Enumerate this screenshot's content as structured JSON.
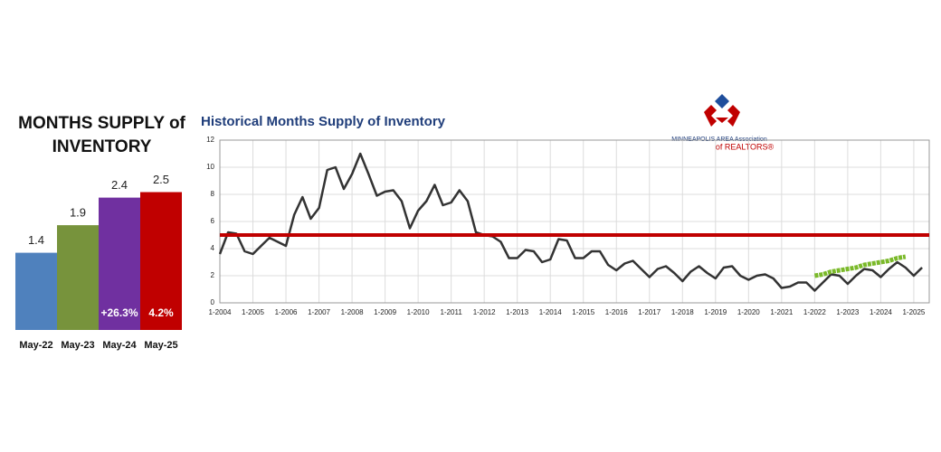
{
  "chart_data": [
    {
      "type": "bar",
      "title": "MONTHS SUPPLY of INVENTORY",
      "categories": [
        "May-22",
        "May-23",
        "May-24",
        "May-25"
      ],
      "values": [
        1.4,
        1.9,
        2.4,
        2.5
      ],
      "colors": [
        "#4f81bd",
        "#77933c",
        "#7030a0",
        "#c00000"
      ],
      "bar_notes": [
        null,
        null,
        "+26.3%",
        "4.2%"
      ]
    },
    {
      "type": "line",
      "title": "Historical Months Supply of Inventory",
      "logo": {
        "line1": "MINNEAPOLIS AREA Association",
        "line2": "of REALTORS®"
      },
      "categories": [
        "1-2004",
        null,
        null,
        null,
        "1-2005",
        null,
        null,
        null,
        "1-2006",
        null,
        null,
        null,
        "1-2007",
        null,
        null,
        null,
        "1-2008",
        null,
        null,
        null,
        "1-2009",
        null,
        null,
        null,
        "1-2010",
        null,
        null,
        null,
        "1-2011",
        null,
        null,
        null,
        "1-2012",
        null,
        null,
        null,
        "1-2013",
        null,
        null,
        null,
        "1-2014",
        null,
        null,
        null,
        "1-2015",
        null,
        null,
        null,
        "1-2016",
        null,
        null,
        null,
        "1-2017",
        null,
        null,
        null,
        "1-2018",
        null,
        null,
        null,
        "1-2019",
        null,
        null,
        null,
        "1-2020",
        null,
        null,
        null,
        "1-2021",
        null,
        null,
        null,
        "1-2022",
        null,
        null,
        null,
        "1-2023",
        null,
        null,
        null,
        "1-2024",
        null,
        null,
        null,
        "1-2025",
        null
      ],
      "series": [
        {
          "color": "#333333",
          "values": [
            3.6,
            5.2,
            5.1,
            3.8,
            3.6,
            4.2,
            4.8,
            4.5,
            4.2,
            6.5,
            7.8,
            6.2,
            7.0,
            9.8,
            10.0,
            8.4,
            9.5,
            11.0,
            9.5,
            7.9,
            8.2,
            8.3,
            7.5,
            5.5,
            6.8,
            7.5,
            8.7,
            7.2,
            7.4,
            8.3,
            7.5,
            5.2,
            5.0,
            4.9,
            4.5,
            3.3,
            3.3,
            3.9,
            3.8,
            3.0,
            3.2,
            4.7,
            4.6,
            3.3,
            3.3,
            3.8,
            3.8,
            2.8,
            2.4,
            2.9,
            3.1,
            2.5,
            1.9,
            2.5,
            2.7,
            2.2,
            1.6,
            2.3,
            2.7,
            2.2,
            1.8,
            2.6,
            2.7,
            2.0,
            1.7,
            2.0,
            2.1,
            1.8,
            1.1,
            1.2,
            1.5,
            1.5,
            0.9,
            1.5,
            2.1,
            2.0,
            1.4,
            2.0,
            2.5,
            2.4,
            1.9,
            2.5,
            3.0,
            2.6,
            2.0,
            2.6
          ]
        },
        {
          "color": "#7ab929",
          "values": [
            null,
            null,
            null,
            null,
            null,
            null,
            null,
            null,
            null,
            null,
            null,
            null,
            null,
            null,
            null,
            null,
            null,
            null,
            null,
            null,
            null,
            null,
            null,
            null,
            null,
            null,
            null,
            null,
            null,
            null,
            null,
            null,
            null,
            null,
            null,
            null,
            null,
            null,
            null,
            null,
            null,
            null,
            null,
            null,
            null,
            null,
            null,
            null,
            null,
            null,
            null,
            null,
            null,
            null,
            null,
            null,
            null,
            null,
            null,
            null,
            null,
            null,
            null,
            null,
            null,
            null,
            null,
            null,
            null,
            null,
            null,
            null,
            2.0,
            2.1,
            2.3,
            2.4,
            2.5,
            2.6,
            2.8,
            2.9,
            3.0,
            3.1,
            3.3,
            3.4,
            null,
            null
          ]
        }
      ],
      "reference_line": {
        "value": 5,
        "color": "#c00000"
      },
      "ylim": [
        0,
        12
      ],
      "yticks": [
        0,
        2,
        4,
        6,
        8,
        10,
        12
      ],
      "grid": true
    }
  ]
}
